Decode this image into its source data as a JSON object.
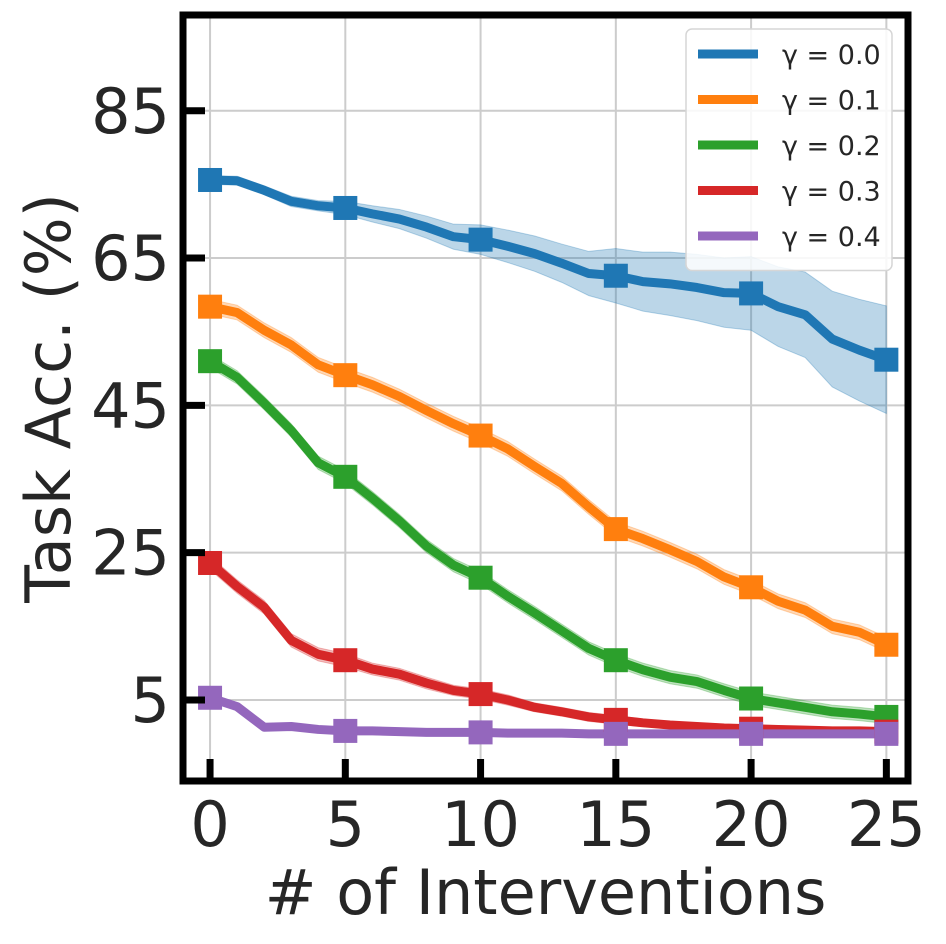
{
  "chart_data": {
    "type": "line",
    "xlabel": "# of Interventions",
    "ylabel": "Task Acc. (%)",
    "xlim": [
      -1,
      25.8
    ],
    "ylim": [
      -6,
      98
    ],
    "xticks": [
      0,
      5,
      10,
      15,
      20,
      25
    ],
    "yticks": [
      5,
      25,
      45,
      65,
      85
    ],
    "grid": true,
    "legend_position": "top-right",
    "x": [
      0,
      1,
      2,
      3,
      4,
      5,
      6,
      7,
      8,
      9,
      10,
      11,
      12,
      13,
      14,
      15,
      16,
      17,
      18,
      19,
      20,
      21,
      22,
      23,
      24,
      25
    ],
    "marker_x": [
      0,
      5,
      10,
      15,
      20,
      25
    ],
    "series": [
      {
        "name": "γ = 0.0",
        "legend_label": "γ = 0.0",
        "color": "#1f77b4",
        "values": [
          75.6,
          75.5,
          74.2,
          72.7,
          72.1,
          71.8,
          71.0,
          70.3,
          69.2,
          67.9,
          67.5,
          66.6,
          65.6,
          64.3,
          62.9,
          62.6,
          61.8,
          61.5,
          61.0,
          60.3,
          60.2,
          58.4,
          57.3,
          54.0,
          52.5,
          51.2
        ],
        "lower": [
          75.0,
          74.9,
          73.6,
          72.0,
          71.4,
          70.9,
          69.9,
          69.0,
          67.7,
          66.2,
          65.5,
          64.4,
          63.2,
          61.7,
          59.9,
          58.9,
          57.8,
          57.2,
          56.5,
          55.6,
          55.2,
          53.0,
          51.5,
          47.5,
          45.6,
          43.9
        ],
        "upper": [
          76.2,
          76.1,
          74.8,
          73.4,
          72.8,
          72.7,
          72.1,
          71.6,
          70.7,
          69.6,
          69.5,
          68.8,
          68.0,
          66.9,
          65.9,
          66.3,
          65.8,
          65.8,
          65.5,
          65.0,
          65.2,
          63.8,
          63.1,
          60.5,
          59.4,
          58.5
        ]
      },
      {
        "name": "γ = 0.1",
        "legend_label": "γ = 0.1",
        "color": "#ff7f0e",
        "values": [
          58.4,
          57.6,
          55.2,
          53.2,
          50.5,
          49.1,
          47.8,
          46.2,
          44.3,
          42.5,
          40.9,
          39.1,
          36.7,
          34.4,
          31.2,
          28.2,
          26.9,
          25.4,
          23.8,
          21.7,
          20.3,
          18.4,
          17.2,
          15.0,
          14.2,
          12.5
        ],
        "lower": [
          57.4,
          56.6,
          54.2,
          52.2,
          49.5,
          48.1,
          46.8,
          45.2,
          43.3,
          41.5,
          39.9,
          38.1,
          35.7,
          33.4,
          30.2,
          27.2,
          25.9,
          24.4,
          22.8,
          20.7,
          19.3,
          17.4,
          16.2,
          14.0,
          13.2,
          11.5
        ],
        "upper": [
          59.4,
          58.6,
          56.2,
          54.2,
          51.5,
          50.1,
          48.8,
          47.2,
          45.3,
          43.5,
          41.9,
          40.1,
          37.7,
          35.4,
          32.2,
          29.2,
          27.9,
          26.4,
          24.8,
          22.7,
          21.3,
          19.4,
          18.2,
          16.0,
          15.2,
          13.5
        ]
      },
      {
        "name": "γ = 0.2",
        "legend_label": "γ = 0.2",
        "color": "#2ca02c",
        "values": [
          51.0,
          48.8,
          45.3,
          41.6,
          37.2,
          35.3,
          32.4,
          29.3,
          25.9,
          23.3,
          21.6,
          19.1,
          16.8,
          14.4,
          12.0,
          10.4,
          9.1,
          8.1,
          7.5,
          6.3,
          5.2,
          4.6,
          4.0,
          3.4,
          3.1,
          2.7
        ],
        "lower": [
          50.1,
          47.9,
          44.4,
          40.7,
          36.3,
          34.4,
          31.5,
          28.4,
          25.0,
          22.4,
          20.7,
          18.2,
          15.9,
          13.5,
          11.1,
          9.5,
          8.2,
          7.2,
          6.6,
          5.4,
          4.3,
          3.7,
          3.1,
          2.5,
          2.2,
          1.8
        ],
        "upper": [
          51.9,
          49.7,
          46.2,
          42.5,
          38.1,
          36.2,
          33.3,
          30.2,
          26.8,
          24.2,
          22.5,
          20.0,
          17.7,
          15.3,
          12.9,
          11.3,
          10.0,
          9.0,
          8.4,
          7.2,
          6.1,
          5.5,
          4.9,
          4.3,
          4.0,
          3.6
        ]
      },
      {
        "name": "γ = 0.3",
        "legend_label": "γ = 0.3",
        "color": "#d62728",
        "values": [
          23.6,
          20.4,
          17.6,
          13.1,
          11.2,
          10.4,
          9.2,
          8.5,
          7.3,
          6.3,
          5.8,
          5.0,
          4.0,
          3.4,
          2.7,
          2.3,
          1.9,
          1.6,
          1.4,
          1.2,
          1.1,
          1.0,
          0.9,
          0.8,
          0.8,
          0.7
        ],
        "lower": [
          22.7,
          19.5,
          16.7,
          12.2,
          10.3,
          9.5,
          8.4,
          7.7,
          6.5,
          5.6,
          5.1,
          4.3,
          3.4,
          2.8,
          2.1,
          1.7,
          1.4,
          1.1,
          0.9,
          0.7,
          0.6,
          0.5,
          0.4,
          0.3,
          0.3,
          0.2
        ],
        "upper": [
          24.5,
          21.3,
          18.5,
          14.0,
          12.1,
          11.3,
          10.0,
          9.3,
          8.1,
          7.0,
          6.5,
          5.7,
          4.6,
          4.0,
          3.3,
          2.9,
          2.4,
          2.1,
          1.9,
          1.7,
          1.6,
          1.5,
          1.4,
          1.3,
          1.3,
          1.2
        ]
      },
      {
        "name": "γ = 0.4",
        "legend_label": "γ = 0.4",
        "color": "#9467bd",
        "values": [
          5.3,
          4.1,
          1.3,
          1.4,
          1.0,
          0.8,
          0.8,
          0.7,
          0.6,
          0.6,
          0.6,
          0.5,
          0.5,
          0.5,
          0.4,
          0.4,
          0.4,
          0.4,
          0.4,
          0.4,
          0.4,
          0.4,
          0.4,
          0.4,
          0.4,
          0.4
        ],
        "lower": [
          4.7,
          3.6,
          0.9,
          1.0,
          0.6,
          0.4,
          0.4,
          0.3,
          0.3,
          0.3,
          0.3,
          0.2,
          0.2,
          0.2,
          0.1,
          0.1,
          0.1,
          0.1,
          0.1,
          0.1,
          0.1,
          0.1,
          0.1,
          0.1,
          0.1,
          0.1
        ],
        "upper": [
          5.9,
          4.6,
          1.7,
          1.8,
          1.4,
          1.2,
          1.2,
          1.1,
          0.9,
          0.9,
          0.9,
          0.8,
          0.8,
          0.8,
          0.7,
          0.7,
          0.7,
          0.7,
          0.7,
          0.7,
          0.7,
          0.7,
          0.7,
          0.7,
          0.7,
          0.7
        ]
      }
    ]
  }
}
